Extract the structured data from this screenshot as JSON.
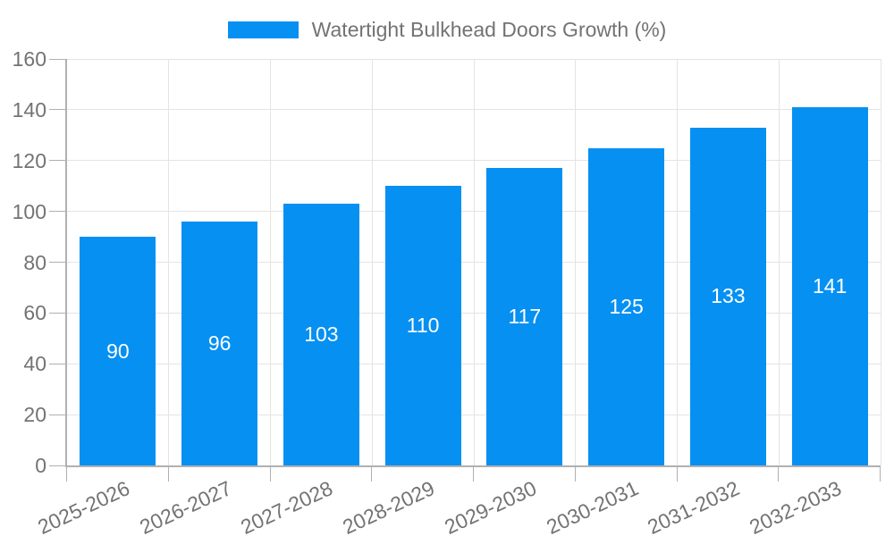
{
  "chart_data": {
    "type": "bar",
    "title": "",
    "legend_label": "Watertight Bulkhead Doors Growth (%)",
    "legend_position": "top-center",
    "categories": [
      "2025-2026",
      "2026-2027",
      "2027-2028",
      "2028-2029",
      "2029-2030",
      "2030-2031",
      "2031-2032",
      "2032-2033"
    ],
    "values": [
      90,
      96,
      103,
      110,
      117,
      125,
      133,
      141
    ],
    "xlabel": "",
    "ylabel": "",
    "ylim": [
      0,
      160
    ],
    "yticks": [
      0,
      20,
      40,
      60,
      80,
      100,
      120,
      140,
      160
    ],
    "grid": true,
    "x_label_rotation_deg": -25,
    "value_labels": "inside-center",
    "colors": {
      "bar": "#0690f2",
      "grid": "#e4e4e4",
      "axis": "#b0b0b0",
      "text": "#737373",
      "value_label": "#ffffff"
    }
  }
}
